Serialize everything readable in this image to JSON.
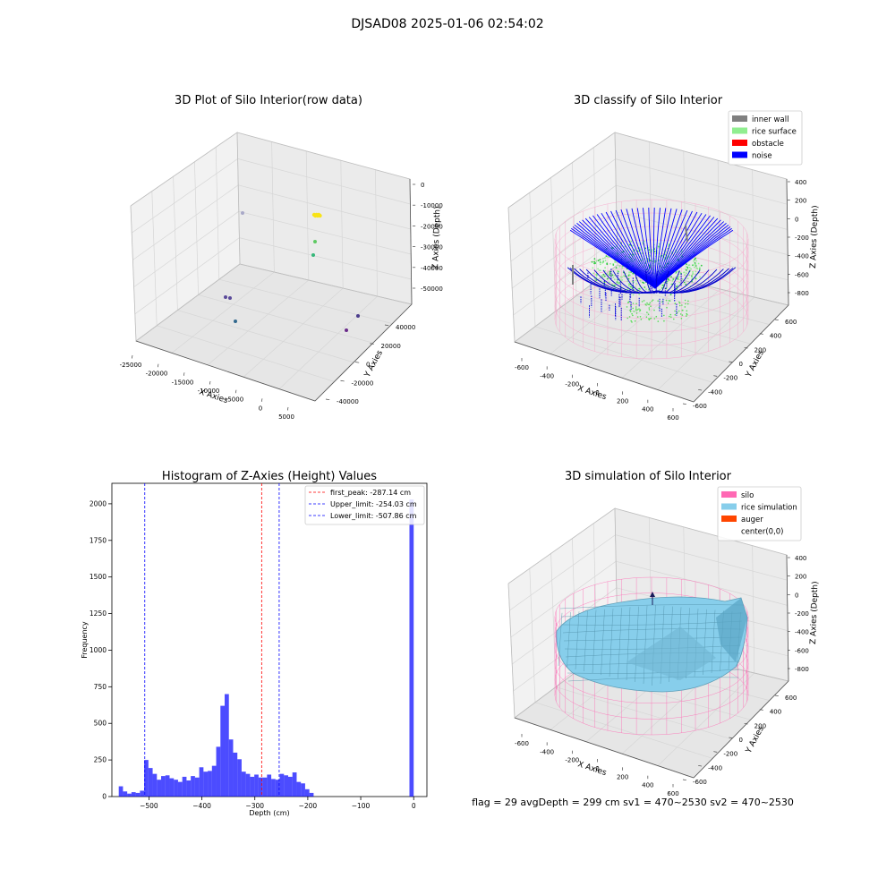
{
  "figure": {
    "suptitle": "DJSAD08 2025-01-06 02:54:02",
    "footer": "flag = 29  avgDepth = 299 cm  sv1 = 470~2530  sv2 = 470~2530"
  },
  "chart_data": [
    {
      "type": "scatter",
      "title": "3D Plot of Silo Interior(row data)",
      "xlabel": "X Axies",
      "ylabel": "Y Axies",
      "zlabel": "Z Axies (Depth)",
      "x_ticks": [
        "-25000",
        "-20000",
        "-15000",
        "-10000",
        "-5000",
        "0",
        "5000"
      ],
      "y_ticks": [
        "-40000",
        "-20000",
        "0",
        "20000",
        "40000"
      ],
      "z_ticks": [
        "-50000",
        "-40000",
        "-30000",
        "-20000",
        "-10000",
        "0"
      ],
      "points": [
        {
          "x": -22000,
          "y": 38000,
          "z": -14000,
          "color": "#a9a9c8"
        },
        {
          "x": 4000,
          "y": 25000,
          "z": -14000,
          "color": "#f8e317"
        },
        {
          "x": 4500,
          "y": 22000,
          "z": -26000,
          "color": "#5ec962"
        },
        {
          "x": 4000,
          "y": 18000,
          "z": -33000,
          "color": "#35b779"
        },
        {
          "x": -20000,
          "y": -5000,
          "z": -45000,
          "color": "#5a4a9a"
        },
        {
          "x": -19000,
          "y": -5000,
          "z": -46000,
          "color": "#5a4a9a"
        },
        {
          "x": -14000,
          "y": -20000,
          "z": -50000,
          "color": "#31688e"
        },
        {
          "x": 2000,
          "y": 30000,
          "z": -55000,
          "color": "#4b3c8c"
        },
        {
          "x": -2000,
          "y": 20000,
          "z": -55000,
          "color": "#6a2b8a"
        }
      ]
    },
    {
      "type": "scatter",
      "title": "3D classify of Silo Interior",
      "xlabel": "X Axies",
      "ylabel": "Y Axies",
      "zlabel": "Z Axies (Depth)",
      "x_ticks": [
        "-600",
        "-400",
        "-200",
        "0",
        "200",
        "400",
        "600"
      ],
      "y_ticks": [
        "-600",
        "-400",
        "-200",
        "0",
        "200",
        "400",
        "600"
      ],
      "z_ticks": [
        "-800",
        "-600",
        "-400",
        "-200",
        "0",
        "200",
        "400"
      ],
      "legend": [
        {
          "label": "inner wall",
          "color": "#808080"
        },
        {
          "label": "rice surface",
          "color": "#90ee90"
        },
        {
          "label": "obstacle",
          "color": "#ff0000"
        },
        {
          "label": "noise",
          "color": "#0000ff"
        }
      ],
      "legend_position": "top-right"
    },
    {
      "type": "bar",
      "title": "Histogram of Z-Axies (Height) Values",
      "xlabel": "Depth (cm)",
      "ylabel": "Frequency",
      "xlim": [
        -570,
        25
      ],
      "ylim": [
        0,
        2140
      ],
      "x_ticks": [
        "−500",
        "−400",
        "−300",
        "−200",
        "−100",
        "0"
      ],
      "y_ticks": [
        "0",
        "250",
        "500",
        "750",
        "1000",
        "1250",
        "1500",
        "1750",
        "2000"
      ],
      "bar_color": "#0000ff",
      "bins": [
        {
          "x0": -557,
          "x1": -549,
          "value": 70
        },
        {
          "x0": -549,
          "x1": -541,
          "value": 35
        },
        {
          "x0": -541,
          "x1": -533,
          "value": 20
        },
        {
          "x0": -533,
          "x1": -525,
          "value": 30
        },
        {
          "x0": -525,
          "x1": -517,
          "value": 25
        },
        {
          "x0": -517,
          "x1": -509,
          "value": 40
        },
        {
          "x0": -509,
          "x1": -501,
          "value": 250
        },
        {
          "x0": -501,
          "x1": -493,
          "value": 195
        },
        {
          "x0": -493,
          "x1": -485,
          "value": 155
        },
        {
          "x0": -485,
          "x1": -477,
          "value": 115
        },
        {
          "x0": -477,
          "x1": -469,
          "value": 140
        },
        {
          "x0": -469,
          "x1": -461,
          "value": 145
        },
        {
          "x0": -461,
          "x1": -453,
          "value": 125
        },
        {
          "x0": -453,
          "x1": -445,
          "value": 115
        },
        {
          "x0": -445,
          "x1": -437,
          "value": 100
        },
        {
          "x0": -437,
          "x1": -429,
          "value": 135
        },
        {
          "x0": -429,
          "x1": -421,
          "value": 110
        },
        {
          "x0": -421,
          "x1": -413,
          "value": 140
        },
        {
          "x0": -413,
          "x1": -405,
          "value": 130
        },
        {
          "x0": -405,
          "x1": -397,
          "value": 200
        },
        {
          "x0": -397,
          "x1": -389,
          "value": 170
        },
        {
          "x0": -389,
          "x1": -381,
          "value": 175
        },
        {
          "x0": -381,
          "x1": -373,
          "value": 210
        },
        {
          "x0": -373,
          "x1": -365,
          "value": 340
        },
        {
          "x0": -365,
          "x1": -357,
          "value": 620
        },
        {
          "x0": -357,
          "x1": -349,
          "value": 700
        },
        {
          "x0": -349,
          "x1": -341,
          "value": 390
        },
        {
          "x0": -341,
          "x1": -333,
          "value": 300
        },
        {
          "x0": -333,
          "x1": -325,
          "value": 255
        },
        {
          "x0": -325,
          "x1": -317,
          "value": 170
        },
        {
          "x0": -317,
          "x1": -309,
          "value": 155
        },
        {
          "x0": -309,
          "x1": -301,
          "value": 135
        },
        {
          "x0": -301,
          "x1": -293,
          "value": 150
        },
        {
          "x0": -293,
          "x1": -285,
          "value": 130
        },
        {
          "x0": -285,
          "x1": -277,
          "value": 130
        },
        {
          "x0": -277,
          "x1": -269,
          "value": 150
        },
        {
          "x0": -269,
          "x1": -261,
          "value": 120
        },
        {
          "x0": -261,
          "x1": -253,
          "value": 115
        },
        {
          "x0": -253,
          "x1": -245,
          "value": 155
        },
        {
          "x0": -245,
          "x1": -237,
          "value": 145
        },
        {
          "x0": -237,
          "x1": -229,
          "value": 135
        },
        {
          "x0": -229,
          "x1": -221,
          "value": 165
        },
        {
          "x0": -221,
          "x1": -213,
          "value": 100
        },
        {
          "x0": -213,
          "x1": -205,
          "value": 90
        },
        {
          "x0": -205,
          "x1": -197,
          "value": 50
        },
        {
          "x0": -197,
          "x1": -189,
          "value": 25
        },
        {
          "x0": -8,
          "x1": 0,
          "value": 2030
        }
      ],
      "vlines": [
        {
          "label": "first_peak: -287.14 cm",
          "x": -287.14,
          "color": "#ff0000"
        },
        {
          "label": "Upper_limit: -254.03 cm",
          "x": -254.03,
          "color": "#0000ff"
        },
        {
          "label": "Lower_limit: -507.86 cm",
          "x": -507.86,
          "color": "#0000ff"
        }
      ],
      "legend_position": "top-right"
    },
    {
      "type": "surface",
      "title": "3D simulation of Silo Interior",
      "xlabel": "X Axies",
      "ylabel": "Y Axies",
      "zlabel": "Z Axies (Depth)",
      "x_ticks": [
        "-600",
        "-400",
        "-200",
        "0",
        "200",
        "400",
        "600"
      ],
      "y_ticks": [
        "-600",
        "-400",
        "-200",
        "0",
        "200",
        "400",
        "600"
      ],
      "z_ticks": [
        "-800",
        "-600",
        "-400",
        "-200",
        "0",
        "200",
        "400"
      ],
      "legend": [
        {
          "label": "silo",
          "color": "#ff69b4"
        },
        {
          "label": "rice simulation",
          "color": "#87ceeb"
        },
        {
          "label": "auger",
          "color": "#ff4500"
        },
        {
          "label": "center(0,0)",
          "color": "#ffffff"
        }
      ],
      "legend_position": "top-right"
    }
  ]
}
